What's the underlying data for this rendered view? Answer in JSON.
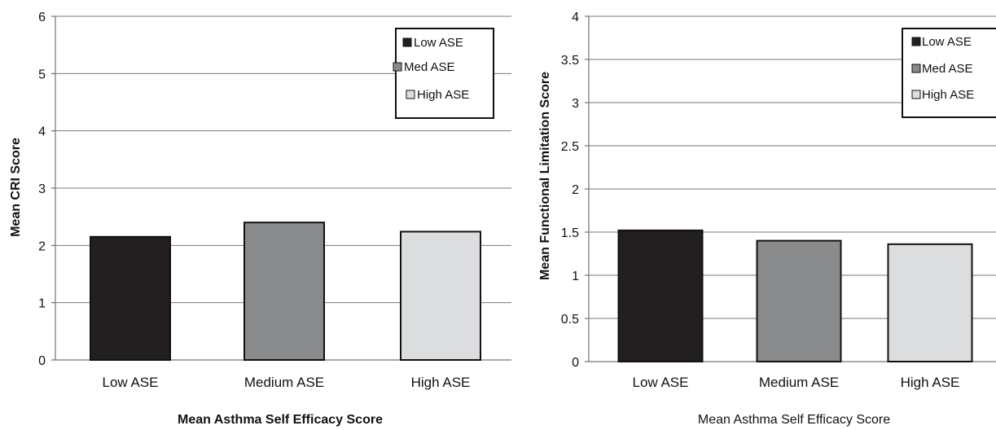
{
  "chart_data": [
    {
      "type": "bar",
      "categories": [
        "Low ASE",
        "Medium ASE",
        "High ASE"
      ],
      "values": [
        2.15,
        2.4,
        2.24
      ],
      "title": "",
      "xlabel": "Mean Asthma Self Efficacy Score",
      "ylabel": "Mean CRI Score",
      "ylim": [
        0,
        6
      ],
      "yticks": [
        "0",
        "1",
        "2",
        "3",
        "4",
        "5",
        "6"
      ],
      "grid": true,
      "legend_position": "top-right",
      "legend": [
        "Low ASE",
        "Med ASE",
        "High ASE"
      ],
      "colors": [
        "#231f20",
        "#8a8b8d",
        "#dcdddf"
      ]
    },
    {
      "type": "bar",
      "categories": [
        "Low ASE",
        "Medium ASE",
        "High ASE"
      ],
      "values": [
        1.52,
        1.4,
        1.36
      ],
      "title": "",
      "xlabel": "Mean Asthma Self Efficacy Score",
      "ylabel": "Mean Functional Limitation Score",
      "ylim": [
        0,
        4
      ],
      "yticks": [
        "0",
        "0.5",
        "1",
        "1.5",
        "2",
        "2.5",
        "3",
        "3.5",
        "4"
      ],
      "grid": true,
      "legend_position": "top-right",
      "legend": [
        "Low ASE",
        "Med ASE",
        "High ASE"
      ],
      "colors": [
        "#231f20",
        "#8a8b8d",
        "#dcdddf"
      ]
    }
  ]
}
